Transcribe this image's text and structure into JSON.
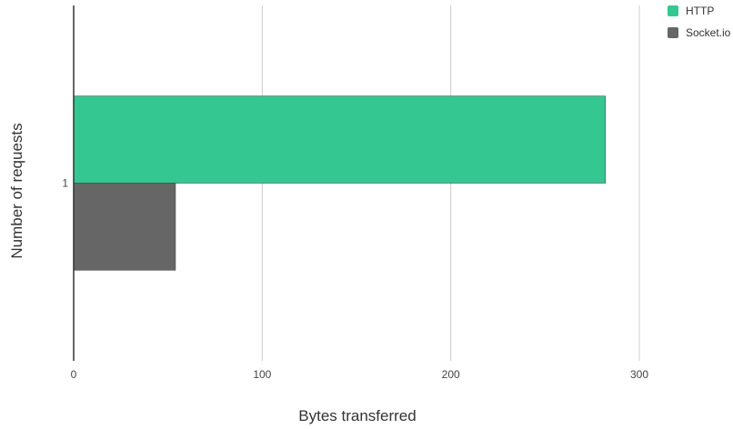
{
  "chart_data": {
    "type": "bar",
    "orientation": "horizontal",
    "categories": [
      "1"
    ],
    "series": [
      {
        "name": "HTTP",
        "values": [
          282
        ],
        "color": "#35c791"
      },
      {
        "name": "Socket.io",
        "values": [
          54
        ],
        "color": "#666666"
      }
    ],
    "xlabel": "Bytes transferred",
    "ylabel": "Number of requests",
    "xticks": [
      "0",
      "100",
      "200",
      "300"
    ],
    "xlim": [
      0,
      300
    ],
    "grid": true,
    "legend_position": "top-right"
  }
}
